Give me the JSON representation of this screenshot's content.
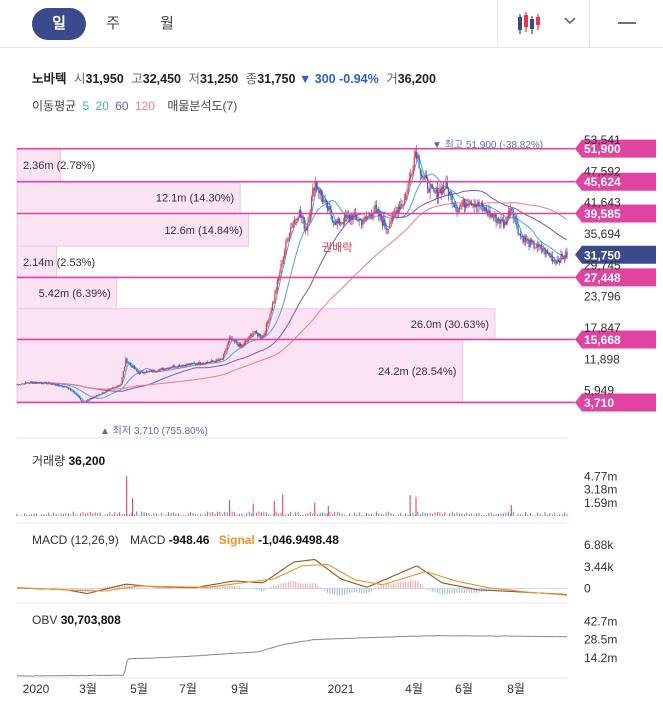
{
  "tabs": [
    {
      "label": "일",
      "active": true
    },
    {
      "label": "주",
      "active": false
    },
    {
      "label": "월",
      "active": false
    }
  ],
  "controls": {
    "chart_type_icon": "candlestick-icon",
    "dropdown_icon": "chevron-down-icon",
    "menu_icon": "minus-icon"
  },
  "info": {
    "name": "노바텍",
    "open_label": "시",
    "open": "31,950",
    "high_label": "고",
    "high": "32,450",
    "low_label": "저",
    "low": "31,250",
    "close_label": "종",
    "close": "31,750",
    "change": "▼ 300 -0.94%",
    "volume_label": "거",
    "volume": "36,200"
  },
  "ma_legend": {
    "label": "이동평균",
    "periods": [
      {
        "text": "5",
        "color": "#2bb8c4"
      },
      {
        "text": "20",
        "color": "#4fa6e0"
      },
      {
        "text": "60",
        "color": "#7b54c9"
      },
      {
        "text": "120",
        "color": "#f07b86"
      }
    ],
    "profile_label": "매물분석도(7)"
  },
  "colors": {
    "up": "#e8344e",
    "down": "#2f5fd0",
    "level": "#e044a0",
    "current": "#3b4a8c",
    "signal": "#f0922b",
    "macd": "#8a5a2b"
  },
  "chart_data": [
    {
      "type": "candlestick",
      "title": "노바텍",
      "x_ticks": [
        "2020",
        "3월",
        "5월",
        "7월",
        "9월",
        "2021",
        "4월",
        "6월",
        "8월"
      ],
      "y_ticks": [
        "53,541",
        "47,592",
        "41,643",
        "35,694",
        "29,745",
        "23,796",
        "17,847",
        "11,898",
        "5,949"
      ],
      "ylim": [
        0,
        53541
      ],
      "price_levels": [
        "51,900",
        "45,624",
        "39,585",
        "31,750",
        "27,448",
        "15,668",
        "3,710"
      ],
      "current_price": "31,750",
      "high_annotation": "▼ 최고 51,900 (-38.82%)",
      "low_annotation": "▲ 최저 3,710 (755.80%)",
      "event_label": "권배락",
      "volume_profile": [
        {
          "label": "2.36m (2.78%)",
          "share": 2.78,
          "from": 45624,
          "to": 51900
        },
        {
          "label": "12.1m (14.30%)",
          "share": 14.3,
          "from": 39585,
          "to": 45624
        },
        {
          "label": "12.6m (14.84%)",
          "share": 14.84,
          "from": 33400,
          "to": 39585
        },
        {
          "label": "2.14m (2.53%)",
          "share": 2.53,
          "from": 27448,
          "to": 33400
        },
        {
          "label": "5.42m (6.39%)",
          "share": 6.39,
          "from": 21500,
          "to": 27448
        },
        {
          "label": "26.0m (30.63%)",
          "share": 30.63,
          "from": 15668,
          "to": 21500
        },
        {
          "label": "24.2m (28.54%)",
          "share": 28.54,
          "from": 3710,
          "to": 15668
        }
      ],
      "close_series": [
        {
          "d": "2020-01-02",
          "v": 7100
        },
        {
          "d": "2020-01-20",
          "v": 7600
        },
        {
          "d": "2020-02-10",
          "v": 7300
        },
        {
          "d": "2020-03-01",
          "v": 6600
        },
        {
          "d": "2020-03-12",
          "v": 5200
        },
        {
          "d": "2020-03-20",
          "v": 3710
        },
        {
          "d": "2020-04-05",
          "v": 5000
        },
        {
          "d": "2020-04-20",
          "v": 6100
        },
        {
          "d": "2020-05-04",
          "v": 7200
        },
        {
          "d": "2020-05-10",
          "v": 11800
        },
        {
          "d": "2020-05-25",
          "v": 9300
        },
        {
          "d": "2020-06-15",
          "v": 9800
        },
        {
          "d": "2020-07-06",
          "v": 10600
        },
        {
          "d": "2020-07-27",
          "v": 11000
        },
        {
          "d": "2020-08-17",
          "v": 11400
        },
        {
          "d": "2020-09-01",
          "v": 11800
        },
        {
          "d": "2020-09-10",
          "v": 15800
        },
        {
          "d": "2020-09-24",
          "v": 14200
        },
        {
          "d": "2020-10-08",
          "v": 17000
        },
        {
          "d": "2020-10-20",
          "v": 16200
        },
        {
          "d": "2020-11-01",
          "v": 23000
        },
        {
          "d": "2020-11-12",
          "v": 31000
        },
        {
          "d": "2020-11-20",
          "v": 36500
        },
        {
          "d": "2020-12-01",
          "v": 40000
        },
        {
          "d": "2020-12-10",
          "v": 36500
        },
        {
          "d": "2020-12-20",
          "v": 45800
        },
        {
          "d": "2021-01-02",
          "v": 41000
        },
        {
          "d": "2021-01-15",
          "v": 37500
        },
        {
          "d": "2021-02-01",
          "v": 39200
        },
        {
          "d": "2021-02-15",
          "v": 38000
        },
        {
          "d": "2021-03-01",
          "v": 40500
        },
        {
          "d": "2021-03-15",
          "v": 36800
        },
        {
          "d": "2021-03-29",
          "v": 40900
        },
        {
          "d": "2021-04-05",
          "v": 42000
        },
        {
          "d": "2021-04-12",
          "v": 46500
        },
        {
          "d": "2021-04-19",
          "v": 51900
        },
        {
          "d": "2021-04-26",
          "v": 46800
        },
        {
          "d": "2021-05-10",
          "v": 43200
        },
        {
          "d": "2021-05-24",
          "v": 44800
        },
        {
          "d": "2021-06-07",
          "v": 40600
        },
        {
          "d": "2021-06-21",
          "v": 42200
        },
        {
          "d": "2021-07-05",
          "v": 40800
        },
        {
          "d": "2021-07-19",
          "v": 39000
        },
        {
          "d": "2021-08-02",
          "v": 37600
        },
        {
          "d": "2021-08-10",
          "v": 41000
        },
        {
          "d": "2021-08-20",
          "v": 35500
        },
        {
          "d": "2021-09-01",
          "v": 33800
        },
        {
          "d": "2021-09-15",
          "v": 32900
        },
        {
          "d": "2021-10-01",
          "v": 30600
        },
        {
          "d": "2021-10-15",
          "v": 31750
        }
      ]
    },
    {
      "type": "bar",
      "title": "거래량",
      "value_text": "36,200",
      "y_ticks": [
        "4.77m",
        "3.18m",
        "1.59m"
      ],
      "ylim": [
        0,
        6000000
      ],
      "spikes": [
        {
          "d": "2020-05-11",
          "v": 4800000
        },
        {
          "d": "2020-05-18",
          "v": 2100000
        },
        {
          "d": "2020-09-10",
          "v": 1900000
        },
        {
          "d": "2020-10-08",
          "v": 1500000
        },
        {
          "d": "2020-11-02",
          "v": 1800000
        },
        {
          "d": "2020-11-12",
          "v": 2600000
        },
        {
          "d": "2020-12-20",
          "v": 1600000
        },
        {
          "d": "2021-01-05",
          "v": 1200000
        },
        {
          "d": "2021-04-12",
          "v": 2500000
        },
        {
          "d": "2021-04-19",
          "v": 2300000
        },
        {
          "d": "2021-08-10",
          "v": 1300000
        }
      ]
    },
    {
      "type": "line",
      "title": "MACD (12,26,9)",
      "macd_label": "MACD",
      "macd_value": "-948.46",
      "signal_label": "Signal",
      "signal_value": "-1,046.9498.48",
      "y_ticks": [
        "6.88k",
        "3.44k",
        "0"
      ],
      "ylim": [
        -1500,
        8000
      ],
      "macd_series": [
        {
          "d": "2020-01-02",
          "v": 100
        },
        {
          "d": "2020-03-01",
          "v": -200
        },
        {
          "d": "2020-03-25",
          "v": -800
        },
        {
          "d": "2020-05-10",
          "v": 700
        },
        {
          "d": "2020-06-15",
          "v": 250
        },
        {
          "d": "2020-08-01",
          "v": 150
        },
        {
          "d": "2020-09-15",
          "v": 1200
        },
        {
          "d": "2020-10-20",
          "v": 900
        },
        {
          "d": "2020-11-25",
          "v": 4200
        },
        {
          "d": "2020-12-20",
          "v": 4600
        },
        {
          "d": "2021-01-20",
          "v": 1500
        },
        {
          "d": "2021-02-20",
          "v": 200
        },
        {
          "d": "2021-04-20",
          "v": 3600
        },
        {
          "d": "2021-05-20",
          "v": 900
        },
        {
          "d": "2021-07-01",
          "v": -200
        },
        {
          "d": "2021-08-15",
          "v": -500
        },
        {
          "d": "2021-10-15",
          "v": -948
        }
      ],
      "signal_series": [
        {
          "d": "2020-01-02",
          "v": 150
        },
        {
          "d": "2020-03-15",
          "v": -300
        },
        {
          "d": "2020-04-15",
          "v": -400
        },
        {
          "d": "2020-05-25",
          "v": 400
        },
        {
          "d": "2020-07-01",
          "v": 300
        },
        {
          "d": "2020-08-15",
          "v": 200
        },
        {
          "d": "2020-10-01",
          "v": 1000
        },
        {
          "d": "2020-11-01",
          "v": 1500
        },
        {
          "d": "2020-12-05",
          "v": 3600
        },
        {
          "d": "2021-01-05",
          "v": 3800
        },
        {
          "d": "2021-02-05",
          "v": 1400
        },
        {
          "d": "2021-03-10",
          "v": 600
        },
        {
          "d": "2021-05-01",
          "v": 2700
        },
        {
          "d": "2021-06-05",
          "v": 1200
        },
        {
          "d": "2021-07-15",
          "v": 100
        },
        {
          "d": "2021-09-01",
          "v": -600
        },
        {
          "d": "2021-10-15",
          "v": -1047
        }
      ]
    },
    {
      "type": "line",
      "title": "OBV",
      "value_text": "30,703,808",
      "y_ticks": [
        "42.7m",
        "28.5m",
        "14.2m"
      ],
      "ylim": [
        0,
        50000000
      ],
      "series": [
        {
          "d": "2020-01-02",
          "v": 0
        },
        {
          "d": "2020-05-08",
          "v": 600000
        },
        {
          "d": "2020-05-12",
          "v": 13500000
        },
        {
          "d": "2020-07-01",
          "v": 14500000
        },
        {
          "d": "2020-09-10",
          "v": 17500000
        },
        {
          "d": "2020-10-15",
          "v": 19000000
        },
        {
          "d": "2020-11-12",
          "v": 24500000
        },
        {
          "d": "2020-12-20",
          "v": 28500000
        },
        {
          "d": "2021-02-01",
          "v": 29500000
        },
        {
          "d": "2021-04-12",
          "v": 31000000
        },
        {
          "d": "2021-05-15",
          "v": 31500000
        },
        {
          "d": "2021-08-01",
          "v": 31200000
        },
        {
          "d": "2021-10-15",
          "v": 30703808
        }
      ]
    }
  ]
}
